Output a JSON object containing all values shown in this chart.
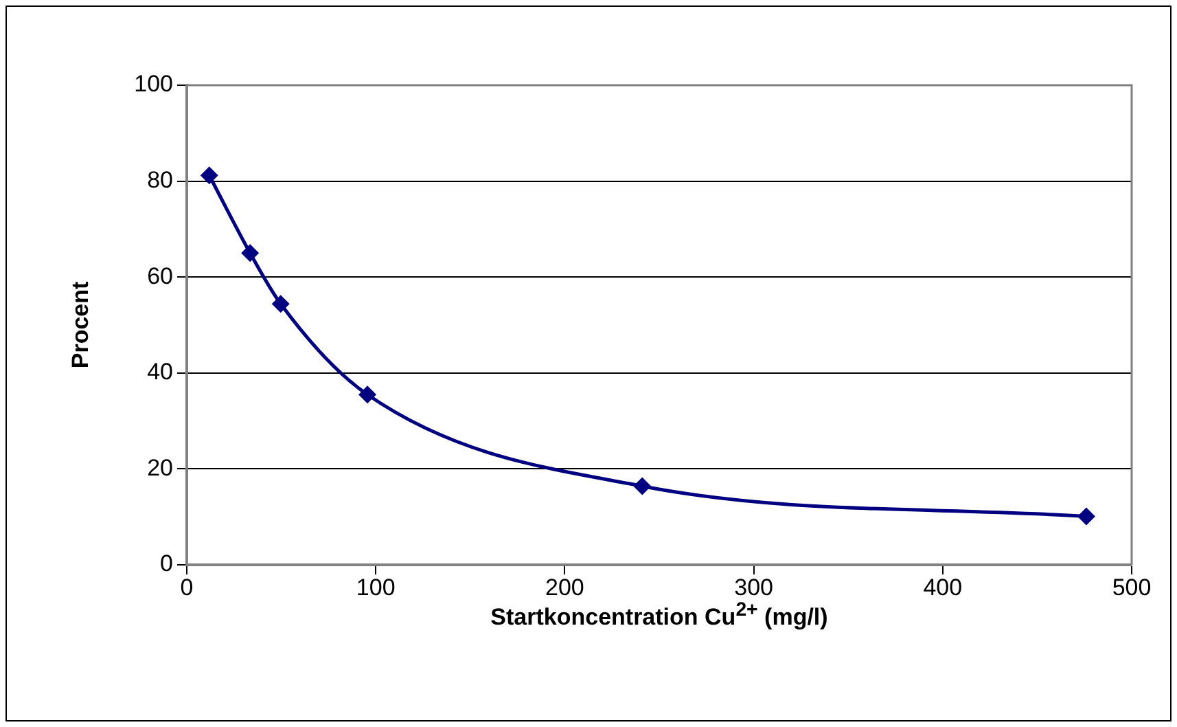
{
  "chart_data": {
    "type": "line",
    "xlabel": "Startkoncentration Cu$^{2+}$ (mg/l)",
    "ylabel": "Procent",
    "x": [
      11.9,
      33.5,
      49.7,
      95.6,
      241,
      476
    ],
    "series": [
      {
        "color": "#000080",
        "values": [
          81.2,
          65.0,
          54.4,
          35.5,
          16.4,
          10.1
        ]
      }
    ],
    "xlim": [
      0,
      500
    ],
    "xticks": [
      0,
      100,
      200,
      300,
      400,
      500
    ],
    "ylim": [
      0,
      100
    ],
    "yticks": [
      0,
      20,
      40,
      60,
      80,
      100
    ],
    "grid": "y",
    "legend": false,
    "marker": "diamond",
    "line_style": "solid"
  }
}
